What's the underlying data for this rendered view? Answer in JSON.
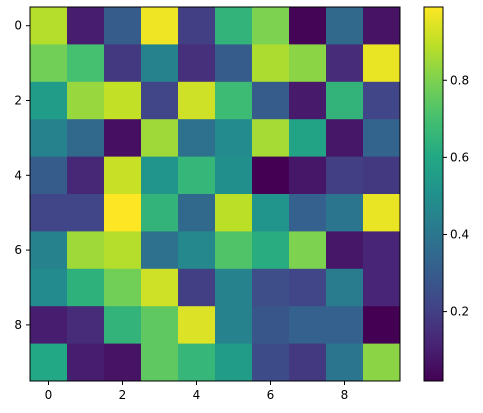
{
  "chart_data": {
    "type": "heatmap",
    "title": "",
    "xlabel": "",
    "ylabel": "",
    "rows": 10,
    "cols": 10,
    "x_ticks": [
      "0",
      "2",
      "4",
      "6",
      "8"
    ],
    "y_ticks": [
      "0",
      "2",
      "4",
      "6",
      "8"
    ],
    "colormap": "viridis",
    "colorbar": {
      "min": 0.02,
      "max": 0.99,
      "ticks": [
        "0.2",
        "0.4",
        "0.6",
        "0.8"
      ],
      "tick_values": [
        0.2,
        0.4,
        0.6,
        0.8
      ]
    },
    "values": [
      [
        0.88,
        0.1,
        0.3,
        0.97,
        0.2,
        0.65,
        0.8,
        0.03,
        0.35,
        0.07
      ],
      [
        0.78,
        0.7,
        0.18,
        0.45,
        0.15,
        0.3,
        0.87,
        0.82,
        0.14,
        0.96
      ],
      [
        0.55,
        0.84,
        0.9,
        0.22,
        0.92,
        0.68,
        0.3,
        0.09,
        0.65,
        0.22
      ],
      [
        0.45,
        0.35,
        0.06,
        0.85,
        0.38,
        0.48,
        0.86,
        0.58,
        0.08,
        0.33
      ],
      [
        0.3,
        0.13,
        0.91,
        0.52,
        0.66,
        0.5,
        0.02,
        0.08,
        0.2,
        0.18
      ],
      [
        0.22,
        0.22,
        0.99,
        0.65,
        0.35,
        0.89,
        0.52,
        0.32,
        0.4,
        0.96
      ],
      [
        0.45,
        0.85,
        0.88,
        0.38,
        0.47,
        0.72,
        0.62,
        0.8,
        0.08,
        0.12
      ],
      [
        0.48,
        0.64,
        0.78,
        0.92,
        0.2,
        0.45,
        0.25,
        0.22,
        0.42,
        0.12
      ],
      [
        0.1,
        0.14,
        0.65,
        0.75,
        0.94,
        0.45,
        0.28,
        0.32,
        0.32,
        0.02
      ],
      [
        0.6,
        0.1,
        0.07,
        0.75,
        0.66,
        0.55,
        0.24,
        0.18,
        0.4,
        0.82
      ]
    ]
  }
}
